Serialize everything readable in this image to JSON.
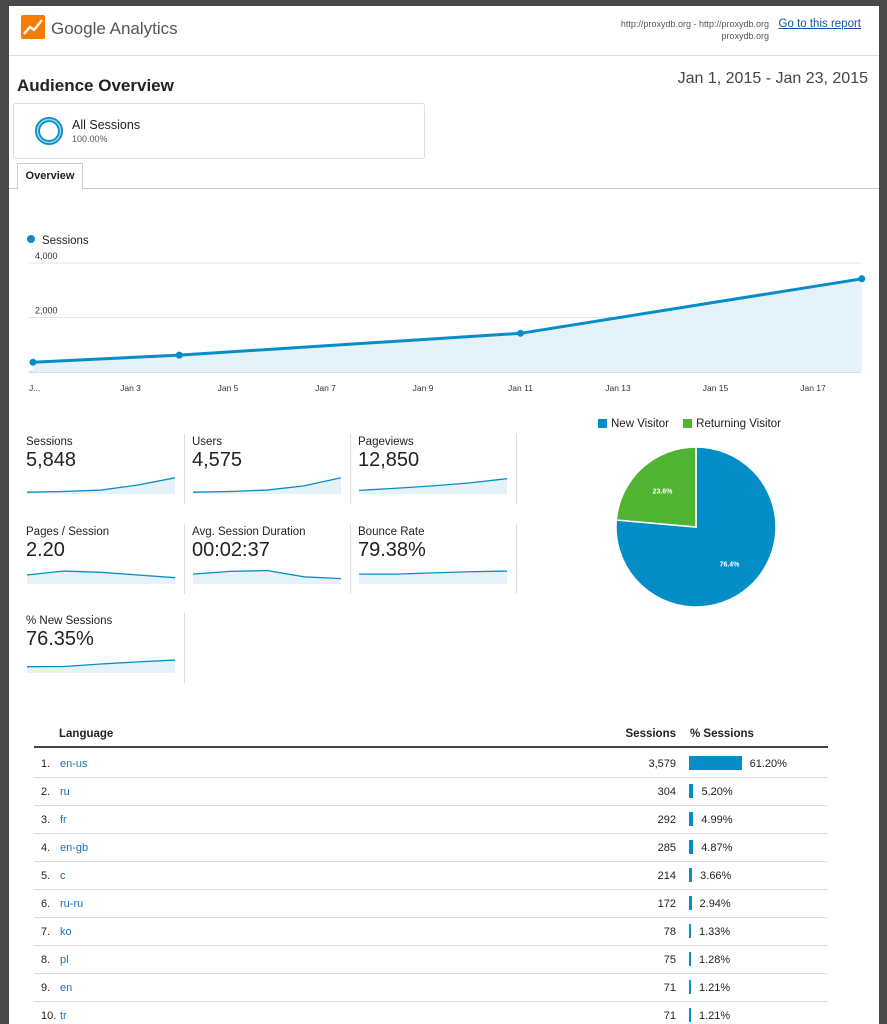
{
  "header": {
    "brand": "Google Analytics",
    "url_line1": "http://proxydb.org - http://proxydb.org",
    "url_line2": "proxydb.org",
    "goto_link": "Go to this report"
  },
  "report": {
    "title": "Audience Overview",
    "date_range": "Jan 1, 2015 - Jan 23, 2015"
  },
  "segment": {
    "name": "All Sessions",
    "percent": "100.00%"
  },
  "tabs": [
    {
      "label": "Overview",
      "active": true
    }
  ],
  "colors": {
    "accent": "#058dc7",
    "new_visitor": "#058dc7",
    "returning_visitor": "#50b432",
    "link": "#1a6fb5"
  },
  "chart_data": [
    {
      "type": "area",
      "series": [
        {
          "name": "Sessions",
          "values": [
            360,
            620,
            1420,
            3420
          ]
        }
      ],
      "x": [
        1,
        4,
        11,
        18
      ],
      "x_ticks": [
        "J...",
        "Jan 3",
        "Jan 5",
        "Jan 7",
        "Jan 9",
        "Jan 11",
        "Jan 13",
        "Jan 15",
        "Jan 17"
      ],
      "y_ticks": [
        "2,000",
        "4,000"
      ],
      "ylim": [
        0,
        4000
      ],
      "legend": "top-left"
    },
    {
      "type": "pie",
      "categories": [
        "New Visitor",
        "Returning Visitor"
      ],
      "values": [
        76.4,
        23.6
      ],
      "labels": [
        "76.4%",
        "23.6%"
      ],
      "legend": "top"
    },
    {
      "type": "table",
      "columns": [
        "Language",
        "Sessions",
        "% Sessions"
      ],
      "rows": [
        {
          "idx": "1.",
          "lang": "en-us",
          "sessions": "3,579",
          "pct": "61.20%",
          "share": 61.2
        },
        {
          "idx": "2.",
          "lang": "ru",
          "sessions": "304",
          "pct": "5.20%",
          "share": 5.2
        },
        {
          "idx": "3.",
          "lang": "fr",
          "sessions": "292",
          "pct": "4.99%",
          "share": 4.99
        },
        {
          "idx": "4.",
          "lang": "en-gb",
          "sessions": "285",
          "pct": "4.87%",
          "share": 4.87
        },
        {
          "idx": "5.",
          "lang": "c",
          "sessions": "214",
          "pct": "3.66%",
          "share": 3.66
        },
        {
          "idx": "6.",
          "lang": "ru-ru",
          "sessions": "172",
          "pct": "2.94%",
          "share": 2.94
        },
        {
          "idx": "7.",
          "lang": "ko",
          "sessions": "78",
          "pct": "1.33%",
          "share": 1.33
        },
        {
          "idx": "8.",
          "lang": "pl",
          "sessions": "75",
          "pct": "1.28%",
          "share": 1.28
        },
        {
          "idx": "9.",
          "lang": "en",
          "sessions": "71",
          "pct": "1.21%",
          "share": 1.21
        },
        {
          "idx": "10.",
          "lang": "tr",
          "sessions": "71",
          "pct": "1.21%",
          "share": 1.21
        }
      ]
    }
  ],
  "metrics": [
    {
      "label": "Sessions",
      "value": "5,848",
      "spark": [
        0.1,
        0.14,
        0.22,
        0.5,
        0.9
      ]
    },
    {
      "label": "Users",
      "value": "4,575",
      "spark": [
        0.1,
        0.14,
        0.22,
        0.45,
        0.9
      ]
    },
    {
      "label": "Pageviews",
      "value": "12,850",
      "spark": [
        0.2,
        0.32,
        0.45,
        0.62,
        0.85
      ]
    },
    {
      "label": "Pages / Session",
      "value": "2.20",
      "spark": [
        0.5,
        0.72,
        0.65,
        0.5,
        0.35
      ]
    },
    {
      "label": "Avg. Session Duration",
      "value": "00:02:37",
      "spark": [
        0.55,
        0.7,
        0.75,
        0.4,
        0.3
      ]
    },
    {
      "label": "Bounce Rate",
      "value": "79.38%",
      "spark": [
        0.55,
        0.55,
        0.62,
        0.68,
        0.72
      ]
    },
    {
      "label": "% New Sessions",
      "value": "76.35%",
      "spark": [
        0.35,
        0.36,
        0.5,
        0.62,
        0.72
      ]
    }
  ]
}
